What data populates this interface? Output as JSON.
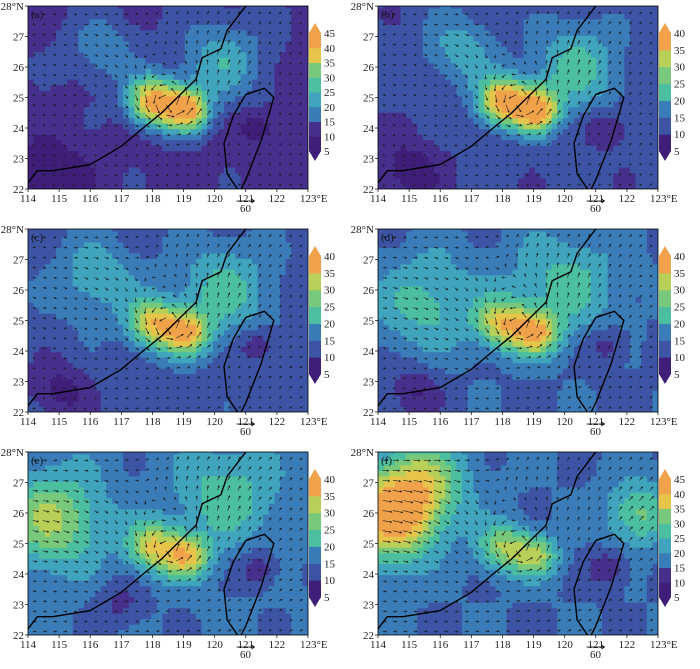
{
  "chart_data": [
    {
      "type": "heatmap",
      "panel_label": "(a)",
      "x_ticks": [
        "114",
        "115",
        "116",
        "117",
        "118",
        "119",
        "120",
        "121",
        "122",
        "123°E"
      ],
      "y_ticks": [
        "22",
        "23",
        "24",
        "25",
        "26",
        "27",
        "28°N"
      ],
      "xlim": [
        114,
        123
      ],
      "ylim": [
        22,
        28
      ],
      "colorbar_ticks": [
        "5",
        "10",
        "15",
        "20",
        "25",
        "30",
        "35",
        "40",
        "45"
      ],
      "colorbar_range": [
        5,
        45
      ],
      "reference_vector": "60",
      "field": {
        "background": 12,
        "cores": [
          {
            "lon": 118.0,
            "lat": 24.9,
            "value": 42,
            "radius": 0.9
          },
          {
            "lon": 119.1,
            "lat": 24.6,
            "value": 42,
            "radius": 0.8
          },
          {
            "lon": 120.2,
            "lat": 26.2,
            "value": 24,
            "radius": 1.6
          },
          {
            "lon": 116.4,
            "lat": 26.6,
            "value": 20,
            "radius": 1.3
          },
          {
            "lon": 114.8,
            "lat": 22.5,
            "value": 5,
            "radius": 1.3
          },
          {
            "lon": 121.4,
            "lat": 24.0,
            "value": 6,
            "radius": 0.7
          }
        ]
      }
    },
    {
      "type": "heatmap",
      "panel_label": "(b)",
      "x_ticks": [
        "114",
        "115",
        "116",
        "117",
        "118",
        "119",
        "120",
        "121",
        "122",
        "123°E"
      ],
      "y_ticks": [
        "22",
        "23",
        "24",
        "25",
        "26",
        "27",
        "28°N"
      ],
      "xlim": [
        114,
        123
      ],
      "ylim": [
        22,
        28
      ],
      "colorbar_ticks": [
        "5",
        "10",
        "15",
        "20",
        "25",
        "30",
        "35",
        "40"
      ],
      "colorbar_range": [
        5,
        40
      ],
      "reference_vector": "60",
      "field": {
        "background": 13,
        "cores": [
          {
            "lon": 118.0,
            "lat": 24.9,
            "value": 38,
            "radius": 0.9
          },
          {
            "lon": 119.1,
            "lat": 24.6,
            "value": 38,
            "radius": 0.8
          },
          {
            "lon": 120.4,
            "lat": 26.0,
            "value": 24,
            "radius": 1.7
          },
          {
            "lon": 116.6,
            "lat": 26.6,
            "value": 21,
            "radius": 1.3
          },
          {
            "lon": 115.0,
            "lat": 22.6,
            "value": 6,
            "radius": 1.2
          },
          {
            "lon": 121.4,
            "lat": 24.0,
            "value": 7,
            "radius": 0.7
          }
        ]
      }
    },
    {
      "type": "heatmap",
      "panel_label": "(c)",
      "x_ticks": [
        "114",
        "115",
        "116",
        "117",
        "118",
        "119",
        "120",
        "121",
        "122",
        "123°E"
      ],
      "y_ticks": [
        "22",
        "23",
        "24",
        "25",
        "26",
        "27",
        "28°N"
      ],
      "xlim": [
        114,
        123
      ],
      "ylim": [
        22,
        28
      ],
      "colorbar_ticks": [
        "5",
        "10",
        "15",
        "20",
        "25",
        "30",
        "35",
        "40"
      ],
      "colorbar_range": [
        5,
        40
      ],
      "reference_vector": "60",
      "field": {
        "background": 14,
        "cores": [
          {
            "lon": 118.0,
            "lat": 24.9,
            "value": 34,
            "radius": 0.9
          },
          {
            "lon": 119.1,
            "lat": 24.6,
            "value": 35,
            "radius": 0.8
          },
          {
            "lon": 120.3,
            "lat": 26.0,
            "value": 24,
            "radius": 1.8
          },
          {
            "lon": 116.2,
            "lat": 26.4,
            "value": 22,
            "radius": 1.5
          },
          {
            "lon": 115.0,
            "lat": 22.7,
            "value": 7,
            "radius": 1.1
          },
          {
            "lon": 121.4,
            "lat": 24.2,
            "value": 8,
            "radius": 0.7
          }
        ]
      }
    },
    {
      "type": "heatmap",
      "panel_label": "(d)",
      "x_ticks": [
        "114",
        "115",
        "116",
        "117",
        "118",
        "119",
        "120",
        "121",
        "122",
        "123°E"
      ],
      "y_ticks": [
        "22",
        "23",
        "24",
        "25",
        "26",
        "27",
        "28°N"
      ],
      "xlim": [
        114,
        123
      ],
      "ylim": [
        22,
        28
      ],
      "colorbar_ticks": [
        "5",
        "10",
        "15",
        "20",
        "25",
        "30",
        "35",
        "40"
      ],
      "colorbar_range": [
        5,
        40
      ],
      "reference_vector": "60",
      "field": {
        "background": 15,
        "cores": [
          {
            "lon": 118.0,
            "lat": 24.9,
            "value": 33,
            "radius": 0.9
          },
          {
            "lon": 119.1,
            "lat": 24.6,
            "value": 34,
            "radius": 0.8
          },
          {
            "lon": 120.0,
            "lat": 26.2,
            "value": 24,
            "radius": 2.0
          },
          {
            "lon": 115.6,
            "lat": 25.6,
            "value": 24,
            "radius": 1.9
          },
          {
            "lon": 115.2,
            "lat": 22.7,
            "value": 8,
            "radius": 1.0
          },
          {
            "lon": 121.4,
            "lat": 24.2,
            "value": 9,
            "radius": 0.7
          }
        ]
      }
    },
    {
      "type": "heatmap",
      "panel_label": "(e)",
      "x_ticks": [
        "114",
        "115",
        "116",
        "117",
        "118",
        "119",
        "120",
        "121",
        "122",
        "123°E"
      ],
      "y_ticks": [
        "22",
        "23",
        "24",
        "25",
        "26",
        "27",
        "28°N"
      ],
      "xlim": [
        114,
        123
      ],
      "ylim": [
        22,
        28
      ],
      "colorbar_ticks": [
        "5",
        "10",
        "15",
        "20",
        "25",
        "30",
        "35",
        "40"
      ],
      "colorbar_range": [
        5,
        40
      ],
      "reference_vector": "60",
      "field": {
        "background": 16,
        "cores": [
          {
            "lon": 118.0,
            "lat": 24.9,
            "value": 33,
            "radius": 0.9
          },
          {
            "lon": 119.1,
            "lat": 24.6,
            "value": 34,
            "radius": 0.8
          },
          {
            "lon": 114.8,
            "lat": 25.8,
            "value": 30,
            "radius": 1.8
          },
          {
            "lon": 120.4,
            "lat": 26.6,
            "value": 25,
            "radius": 1.8
          },
          {
            "lon": 117.0,
            "lat": 23.0,
            "value": 11,
            "radius": 0.9
          },
          {
            "lon": 121.4,
            "lat": 24.2,
            "value": 9,
            "radius": 0.7
          }
        ]
      }
    },
    {
      "type": "heatmap",
      "panel_label": "(f)",
      "x_ticks": [
        "114",
        "115",
        "116",
        "117",
        "118",
        "119",
        "120",
        "121",
        "122",
        "123°E"
      ],
      "y_ticks": [
        "22",
        "23",
        "24",
        "25",
        "26",
        "27",
        "28°N"
      ],
      "xlim": [
        114,
        123
      ],
      "ylim": [
        22,
        28
      ],
      "colorbar_ticks": [
        "5",
        "10",
        "15",
        "20",
        "25",
        "30",
        "35",
        "40",
        "45"
      ],
      "colorbar_range": [
        5,
        45
      ],
      "reference_vector": "60",
      "field": {
        "background": 17,
        "cores": [
          {
            "lon": 118.0,
            "lat": 24.9,
            "value": 33,
            "radius": 0.9
          },
          {
            "lon": 119.1,
            "lat": 24.6,
            "value": 33,
            "radius": 0.8
          },
          {
            "lon": 114.4,
            "lat": 25.8,
            "value": 42,
            "radius": 1.6
          },
          {
            "lon": 115.4,
            "lat": 27.0,
            "value": 34,
            "radius": 1.6
          },
          {
            "lon": 122.4,
            "lat": 26.0,
            "value": 30,
            "radius": 1.2
          },
          {
            "lon": 121.4,
            "lat": 24.2,
            "value": 9,
            "radius": 0.7
          }
        ]
      }
    }
  ],
  "palette": [
    "#3e1e78",
    "#472f8c",
    "#3c54a3",
    "#3a7cb8",
    "#3fa4bc",
    "#4bbfa0",
    "#79c97c",
    "#b8cf58",
    "#e7c44a",
    "#f0a24a"
  ],
  "coastline": [
    [
      114.0,
      22.2
    ],
    [
      114.3,
      22.6
    ],
    [
      114.8,
      22.6
    ],
    [
      116.0,
      22.8
    ],
    [
      117.0,
      23.4
    ],
    [
      117.7,
      24.0
    ],
    [
      118.3,
      24.5
    ],
    [
      118.8,
      25.0
    ],
    [
      119.4,
      25.6
    ],
    [
      119.6,
      26.3
    ],
    [
      120.2,
      26.6
    ],
    [
      120.4,
      27.2
    ],
    [
      121.0,
      28.0
    ]
  ],
  "taiwan": [
    [
      121.0,
      25.1
    ],
    [
      121.6,
      25.3
    ],
    [
      121.9,
      25.0
    ],
    [
      121.5,
      23.6
    ],
    [
      121.0,
      22.3
    ],
    [
      120.8,
      21.9
    ],
    [
      120.4,
      22.5
    ],
    [
      120.3,
      23.5
    ],
    [
      120.6,
      24.4
    ],
    [
      121.0,
      25.1
    ]
  ],
  "wind": {
    "vortex_center": [
      118.6,
      24.7
    ],
    "background_u": 0.6,
    "background_v": 0.2
  }
}
